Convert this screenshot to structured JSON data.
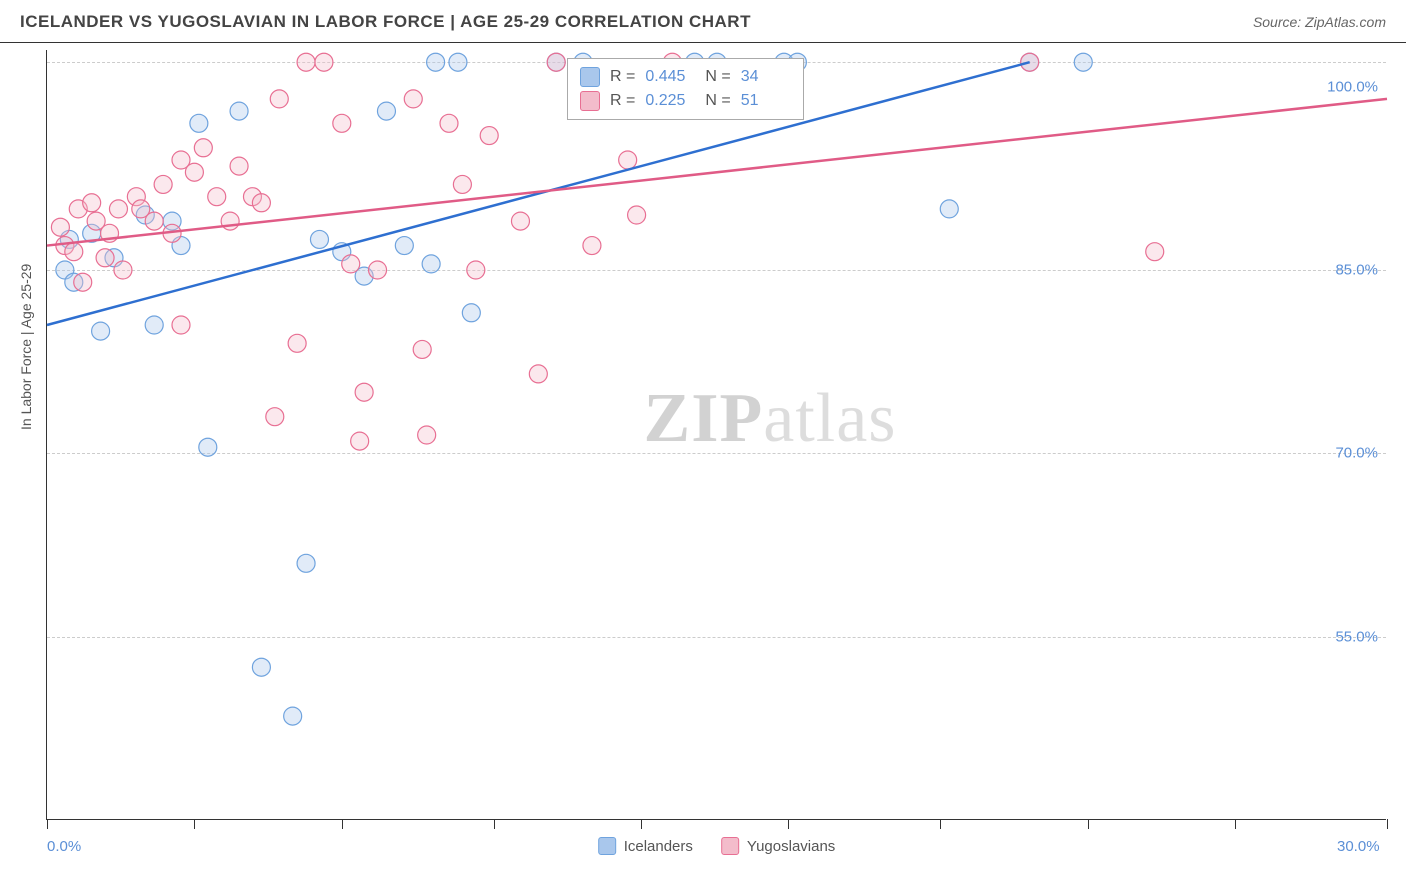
{
  "header": {
    "title": "ICELANDER VS YUGOSLAVIAN IN LABOR FORCE | AGE 25-29 CORRELATION CHART",
    "source": "Source: ZipAtlas.com"
  },
  "chart": {
    "type": "scatter",
    "ylabel": "In Labor Force | Age 25-29",
    "xlim": [
      0,
      30
    ],
    "ylim": [
      40,
      103
    ],
    "xtick_positions": [
      0,
      3.3,
      6.6,
      10,
      13.3,
      16.6,
      20,
      23.3,
      26.6,
      30
    ],
    "xaxis_labels": [
      {
        "pos": 0,
        "text": "0.0%"
      },
      {
        "pos": 30,
        "text": "30.0%"
      }
    ],
    "ytick_labels": [
      {
        "pos": 100,
        "text": "100.0%"
      },
      {
        "pos": 85,
        "text": "85.0%"
      },
      {
        "pos": 70,
        "text": "70.0%"
      },
      {
        "pos": 55,
        "text": "55.0%"
      }
    ],
    "grid_y": [
      102,
      85,
      70,
      55
    ],
    "grid_color": "#cccccc",
    "background_color": "#ffffff",
    "marker_radius": 9,
    "series": [
      {
        "name": "Icelanders",
        "color_fill": "#a9c7ec",
        "color_stroke": "#6fa3de",
        "r": 0.445,
        "n": 34,
        "trend": {
          "x1": 0,
          "y1": 80.5,
          "x2": 22,
          "y2": 102
        },
        "points": [
          [
            0.5,
            87.5
          ],
          [
            0.4,
            85
          ],
          [
            0.6,
            84
          ],
          [
            1.0,
            88
          ],
          [
            1.2,
            80
          ],
          [
            1.5,
            86
          ],
          [
            2.2,
            89.5
          ],
          [
            2.4,
            80.5
          ],
          [
            2.8,
            89
          ],
          [
            3.0,
            87
          ],
          [
            3.4,
            97
          ],
          [
            3.6,
            70.5
          ],
          [
            4.3,
            98
          ],
          [
            4.8,
            52.5
          ],
          [
            5.5,
            48.5
          ],
          [
            5.8,
            61
          ],
          [
            6.1,
            87.5
          ],
          [
            6.6,
            86.5
          ],
          [
            7.1,
            84.5
          ],
          [
            7.6,
            98
          ],
          [
            8.0,
            87
          ],
          [
            8.6,
            85.5
          ],
          [
            8.7,
            102
          ],
          [
            9.2,
            102
          ],
          [
            9.5,
            81.5
          ],
          [
            11.4,
            102
          ],
          [
            12.0,
            102
          ],
          [
            14.5,
            102
          ],
          [
            15.0,
            102
          ],
          [
            16.5,
            102
          ],
          [
            16.8,
            102
          ],
          [
            20.2,
            90
          ],
          [
            22.0,
            102
          ],
          [
            23.2,
            102
          ]
        ]
      },
      {
        "name": "Yugoslavians",
        "color_fill": "#f3bccb",
        "color_stroke": "#e86f93",
        "r": 0.225,
        "n": 51,
        "trend": {
          "x1": 0,
          "y1": 87,
          "x2": 30,
          "y2": 99
        },
        "points": [
          [
            0.3,
            88.5
          ],
          [
            0.4,
            87
          ],
          [
            0.6,
            86.5
          ],
          [
            0.7,
            90
          ],
          [
            0.8,
            84
          ],
          [
            1.0,
            90.5
          ],
          [
            1.1,
            89
          ],
          [
            1.3,
            86
          ],
          [
            1.4,
            88
          ],
          [
            1.6,
            90
          ],
          [
            1.7,
            85
          ],
          [
            2.0,
            91
          ],
          [
            2.1,
            90
          ],
          [
            2.4,
            89
          ],
          [
            2.6,
            92
          ],
          [
            2.8,
            88
          ],
          [
            3.0,
            94
          ],
          [
            3.0,
            80.5
          ],
          [
            3.3,
            93
          ],
          [
            3.5,
            95
          ],
          [
            3.8,
            91
          ],
          [
            4.1,
            89
          ],
          [
            4.3,
            93.5
          ],
          [
            4.6,
            91
          ],
          [
            4.8,
            90.5
          ],
          [
            5.1,
            73
          ],
          [
            5.2,
            99
          ],
          [
            5.6,
            79
          ],
          [
            5.8,
            102
          ],
          [
            6.2,
            102
          ],
          [
            6.6,
            97
          ],
          [
            6.8,
            85.5
          ],
          [
            7.0,
            71
          ],
          [
            7.1,
            75
          ],
          [
            7.4,
            85
          ],
          [
            8.2,
            99
          ],
          [
            8.4,
            78.5
          ],
          [
            8.5,
            71.5
          ],
          [
            9.0,
            97
          ],
          [
            9.3,
            92
          ],
          [
            9.6,
            85
          ],
          [
            9.9,
            96
          ],
          [
            10.6,
            89
          ],
          [
            11.0,
            76.5
          ],
          [
            11.4,
            102
          ],
          [
            12.2,
            87
          ],
          [
            13.0,
            94
          ],
          [
            13.2,
            89.5
          ],
          [
            14.0,
            102
          ],
          [
            22.0,
            102
          ],
          [
            24.8,
            86.5
          ]
        ]
      }
    ],
    "legend_bottom": [
      {
        "label": "Icelanders",
        "fill": "#a9c7ec",
        "stroke": "#6fa3de"
      },
      {
        "label": "Yugoslavians",
        "fill": "#f3bccb",
        "stroke": "#e86f93"
      }
    ],
    "stats_box": {
      "rows": [
        {
          "fill": "#a9c7ec",
          "stroke": "#6fa3de",
          "r": "0.445",
          "n": "34"
        },
        {
          "fill": "#f3bccb",
          "stroke": "#e86f93",
          "r": "0.225",
          "n": "51"
        }
      ]
    },
    "watermark": {
      "zip": "ZIP",
      "atlas": "atlas"
    }
  }
}
